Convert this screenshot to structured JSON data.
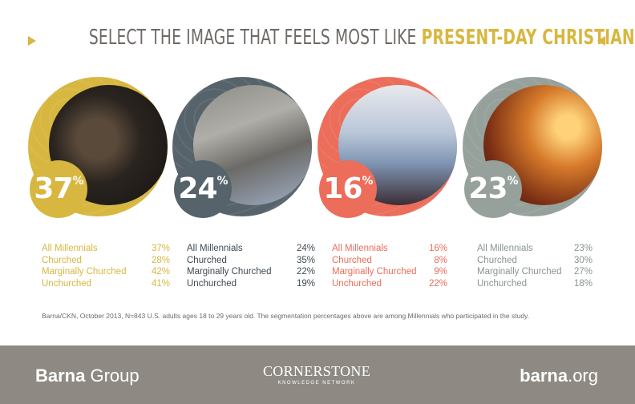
{
  "title": {
    "plain": "SELECT THE IMAGE THAT FEELS MOST LIKE ",
    "accent": "PRESENT-DAY CHRISTIANITY"
  },
  "colors": {
    "gold": "#d7b740",
    "slate": "#56636b",
    "coral": "#eb6d5a",
    "sage": "#96a19b",
    "gray_text": "#6f6a66",
    "footer": "#8e8a83"
  },
  "options": [
    {
      "photo_icon": "pointing-finger-bible-photo",
      "percent": "37",
      "percent_sign": "%",
      "stats": [
        {
          "label": "All Millennials",
          "value": "37%"
        },
        {
          "label": "Churched",
          "value": "28%"
        },
        {
          "label": "Marginally Churched",
          "value": "42%"
        },
        {
          "label": "Unchurched",
          "value": "41%"
        }
      ]
    },
    {
      "photo_icon": "man-reclining-photo",
      "percent": "24",
      "percent_sign": "%",
      "stats": [
        {
          "label": "All Millennials",
          "value": "24%"
        },
        {
          "label": "Churched",
          "value": "35%"
        },
        {
          "label": "Marginally Churched",
          "value": "22%"
        },
        {
          "label": "Unchurched",
          "value": "19%"
        }
      ]
    },
    {
      "photo_icon": "man-with-megaphone-photo",
      "percent": "16",
      "percent_sign": "%",
      "stats": [
        {
          "label": "All Millennials",
          "value": "16%"
        },
        {
          "label": "Churched",
          "value": "8%"
        },
        {
          "label": "Marginally Churched",
          "value": "9%"
        },
        {
          "label": "Unchurched",
          "value": "22%"
        }
      ]
    },
    {
      "photo_icon": "worship-concert-crowd-photo",
      "percent": "23",
      "percent_sign": "%",
      "stats": [
        {
          "label": "All Millennials",
          "value": "23%"
        },
        {
          "label": "Churched",
          "value": "30%"
        },
        {
          "label": "Marginally Churched",
          "value": "27%"
        },
        {
          "label": "Unchurched",
          "value": "18%"
        }
      ]
    }
  ],
  "footnote": "Barna/CKN, October 2013, N=843 U.S. adults ages 18 to 29 years old. The segmentation percentages above are among Millennials who participated in the study.",
  "footer": {
    "left_bold": "Barna",
    "left_rest": " Group",
    "mid_big": "CORNERSTONE",
    "mid_small": "KNOWLEDGE NETWORK",
    "right_bold": "barna",
    "right_rest": ".org"
  }
}
